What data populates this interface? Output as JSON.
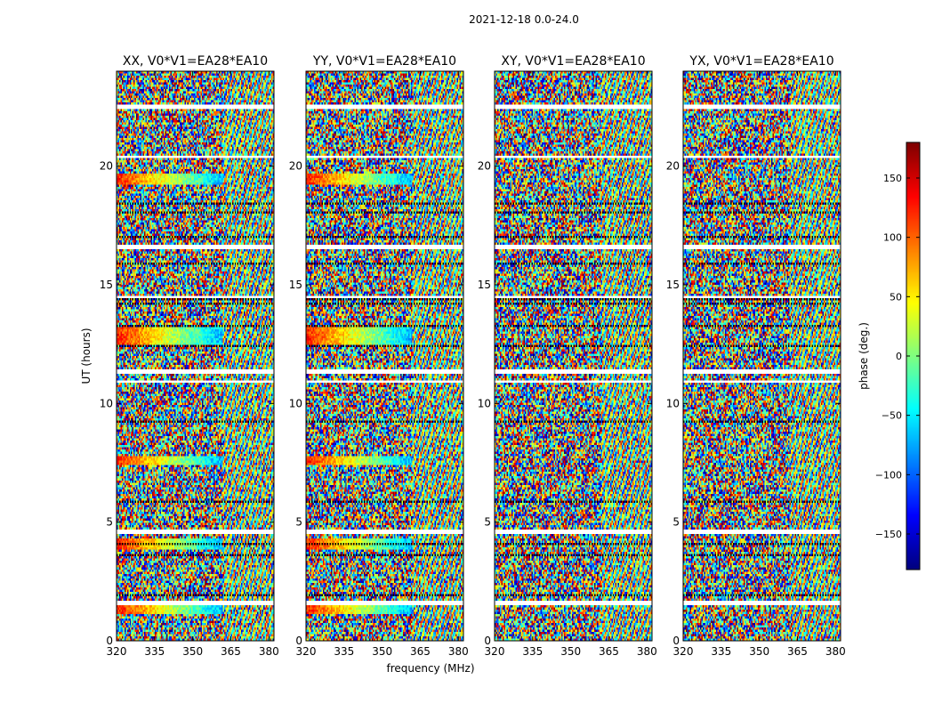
{
  "figure_title": "2021-12-18 0.0-24.0",
  "chart_data": {
    "type": "heatmap",
    "suptitle": "2021-12-18 0.0-24.0",
    "xlabel": "frequency (MHz)",
    "ylabel": "UT (hours)",
    "xlim": [
      320,
      382
    ],
    "ylim": [
      0,
      24
    ],
    "xticks": [
      320,
      335,
      350,
      365,
      380
    ],
    "yticks": [
      0,
      5,
      10,
      15,
      20
    ],
    "panels": [
      {
        "title": "XX, V0*V1=EA28*EA10",
        "polarization": "XX"
      },
      {
        "title": "YY, V0*V1=EA28*EA10",
        "polarization": "YY"
      },
      {
        "title": "XY, V0*V1=EA28*EA10",
        "polarization": "XY"
      },
      {
        "title": "YX, V0*V1=EA28*EA10",
        "polarization": "YX"
      }
    ],
    "colorbar": {
      "label": "phase (deg.)",
      "range": [
        -180,
        180
      ],
      "ticks": [
        -150,
        -100,
        -50,
        0,
        50,
        100,
        150
      ],
      "colormap": "jet"
    },
    "notes": "Visibility phase vs frequency and UT time; gaps (white) and flagged/striped bands throughout. Coherent phase gradients visible in XX/YY near UT 1.5, 4, 7.5, 13, 19.5."
  }
}
